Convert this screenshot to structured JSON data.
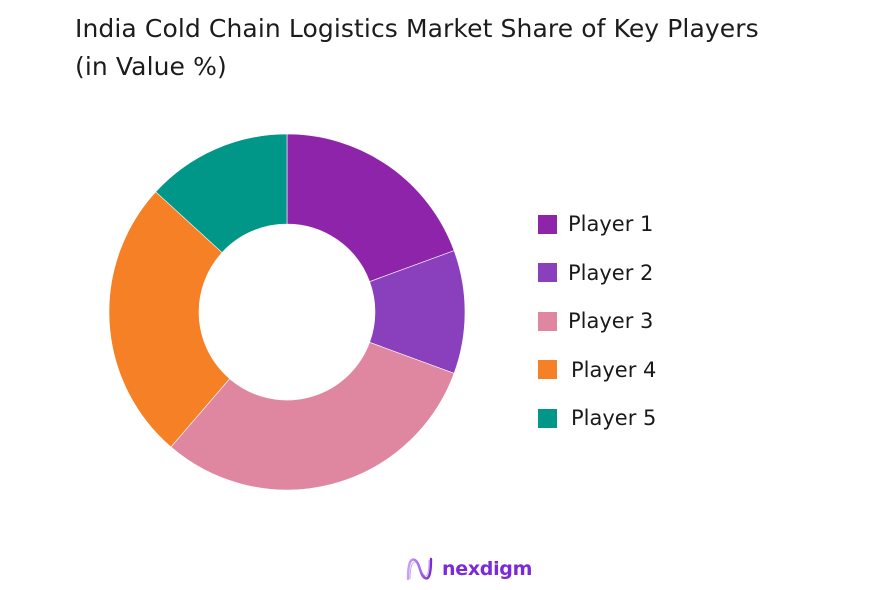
{
  "title": "India Cold Chain Logistics Market Share of Key Players (in Value %)",
  "chart_data": {
    "type": "pie",
    "subtype": "donut",
    "title": "India Cold Chain Logistics Market Share of Key Players (in Value %)",
    "categories": [
      "Player 1",
      "Player 2",
      "Player 3",
      "Player 4",
      "Player 5"
    ],
    "values": [
      19.4,
      11.2,
      30.7,
      25.5,
      13.2
    ],
    "colors": [
      "#8e24aa",
      "#8a3fbd",
      "#df87a1",
      "#f58025",
      "#009688"
    ],
    "start_angle_deg": 0,
    "direction": "clockwise",
    "legend_position": "right",
    "data_labels": false
  },
  "legend": {
    "items": [
      {
        "label": "Player 1",
        "color": "#8e24aa"
      },
      {
        "label": "Player 2",
        "color": "#8a3fbd"
      },
      {
        "label": "Player 3",
        "color": "#df87a1"
      },
      {
        "label": "Player 4",
        "color": "#f58025"
      },
      {
        "label": "Player 5",
        "color": "#009688"
      }
    ]
  },
  "logo": {
    "text": "nexdigm",
    "color": "#7a2ad6"
  }
}
